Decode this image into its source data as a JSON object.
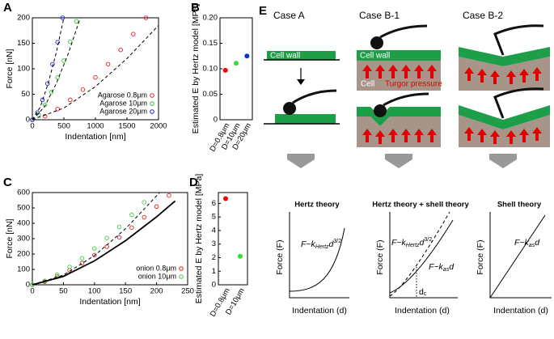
{
  "chart_data": [
    {
      "panel": "A",
      "type": "scatter",
      "xlabel": "Indentation [nm]",
      "ylabel": "Force [nN]",
      "xlim": [
        0,
        2000
      ],
      "ylim": [
        0,
        200
      ],
      "xticks": [
        0,
        500,
        1000,
        1500,
        2000
      ],
      "yticks": [
        0,
        50,
        100,
        150,
        200
      ],
      "legend": "lower right",
      "series": [
        {
          "name": "Agarose 0.8μm",
          "color": "#e02020",
          "marker": "circle",
          "x": [
            0,
            200,
            400,
            600,
            800,
            1000,
            1200,
            1400,
            1600,
            1800
          ],
          "values": [
            0,
            7,
            21,
            39,
            59,
            83,
            109,
            137,
            168,
            200
          ]
        },
        {
          "name": "Agarose 10μm",
          "color": "#30c030",
          "marker": "circle",
          "x": [
            0,
            100,
            200,
            300,
            400,
            500,
            600,
            700
          ],
          "values": [
            0,
            10,
            29,
            54,
            83,
            116,
            153,
            193
          ]
        },
        {
          "name": "Agarose 20μm",
          "color": "#2020d0",
          "marker": "circle",
          "x": [
            0,
            80,
            160,
            240,
            320,
            400,
            480
          ],
          "values": [
            0,
            14,
            39,
            71,
            109,
            152,
            200
          ]
        },
        {
          "color": "#000000",
          "line": "dashed",
          "x": [
            0,
            125,
            250,
            375,
            500
          ],
          "values": [
            0,
            25,
            71,
            130,
            200
          ]
        },
        {
          "color": "#000000",
          "line": "dashed",
          "x": [
            0,
            190,
            380,
            570,
            760
          ],
          "values": [
            0,
            25,
            71,
            130,
            200
          ]
        },
        {
          "color": "#000000",
          "line": "dashed",
          "x": [
            0,
            500,
            1000,
            1500,
            2000
          ],
          "values": [
            0,
            23,
            65,
            120,
            185
          ]
        }
      ]
    },
    {
      "panel": "B",
      "type": "dot",
      "ylabel": "Estimated E by Hertz model [MPa]",
      "categories": [
        "D=0.8μm",
        "D=10μm",
        "D=20μm"
      ],
      "values": [
        0.097,
        0.111,
        0.125
      ],
      "colors": [
        "#ff0000",
        "#30dd30",
        "#1030c0"
      ],
      "ylim": [
        0,
        0.2
      ],
      "yticks": [
        0,
        0.05,
        {
          "value": 0.1,
          "label": "0.10"
        },
        0.15,
        {
          "value": 0.2,
          "label": "0.20"
        }
      ]
    },
    {
      "panel": "C",
      "type": "scatter",
      "xlabel": "Indentation [nm]",
      "ylabel": "Force [nN]",
      "xlim": [
        0,
        250
      ],
      "ylim": [
        0,
        600
      ],
      "xticks": [
        0,
        50,
        100,
        150,
        200,
        250
      ],
      "yticks": [
        0,
        100,
        200,
        300,
        400,
        500,
        600
      ],
      "legend": "lower right",
      "series": [
        {
          "name": "onion 0.8μm",
          "color": "#e02020",
          "marker": "circle",
          "x": [
            0,
            20,
            40,
            60,
            80,
            100,
            120,
            140,
            160,
            180,
            200,
            220
          ],
          "values": [
            0,
            20,
            53,
            94,
            141,
            193,
            248,
            308,
            372,
            439,
            509,
            581
          ]
        },
        {
          "name": "onion 10μm",
          "color": "#40d040",
          "marker": "circle",
          "x": [
            0,
            20,
            40,
            60,
            80,
            100,
            120,
            140,
            160,
            180
          ],
          "values": [
            0,
            25,
            66,
            116,
            173,
            236,
            304,
            377,
            455,
            537
          ]
        },
        {
          "color": "#000000",
          "line": "solid",
          "x": [
            0,
            50,
            100,
            150,
            200,
            230
          ],
          "values": [
            0,
            55,
            156,
            287,
            442,
            545
          ]
        },
        {
          "color": "#000000",
          "line": "dashed",
          "x": [
            0,
            50,
            100,
            150,
            205
          ],
          "values": [
            0,
            63,
            190,
            364,
            600
          ]
        }
      ]
    },
    {
      "panel": "D",
      "type": "errorbar",
      "ylabel": "Estimated E by Hertz model [MPa]",
      "categories": [
        "D=0.8μm",
        "D=10μm"
      ],
      "values": [
        6.35,
        2.1
      ],
      "errors": [
        0.15,
        0.1
      ],
      "colors": [
        "#ff0000",
        "#30dd30"
      ],
      "ylim": [
        0,
        6.8
      ],
      "yticks": [
        0,
        1,
        2,
        3,
        4,
        5,
        6
      ]
    }
  ],
  "panel_e": {
    "panel": "E",
    "cases": [
      "Case A",
      "Case B-1",
      "Case B-2"
    ],
    "case_a_label": "Cell wall",
    "case_b1_labels": [
      "Cell wall",
      "Cell",
      "Turgor pressure"
    ],
    "graphs": [
      {
        "title": "Hertz theory",
        "ylabel": "Force (F)",
        "xlabel": "Indentation (d)",
        "formulas": [
          {
            "lhs": "F~k",
            "sub": "Hertz",
            "var": "d",
            "sup": "3/2"
          }
        ]
      },
      {
        "title": "Hertz theory + shell theory",
        "ylabel": "Force (F)",
        "xlabel": "Indentation (d)",
        "formulas": [
          {
            "lhs": "F~k",
            "sub": "Hertz",
            "var": "d",
            "sup": "3/2"
          },
          {
            "lhs": "F~k",
            "sub": "as",
            "var": "d"
          }
        ],
        "marker": {
          "main": "d",
          "sub": "c"
        }
      },
      {
        "title": "Shell theory",
        "ylabel": "Force (F)",
        "xlabel": "Indentation (d)",
        "formulas": [
          {
            "lhs": "F~k",
            "sub": "as",
            "var": "d"
          }
        ]
      }
    ]
  }
}
